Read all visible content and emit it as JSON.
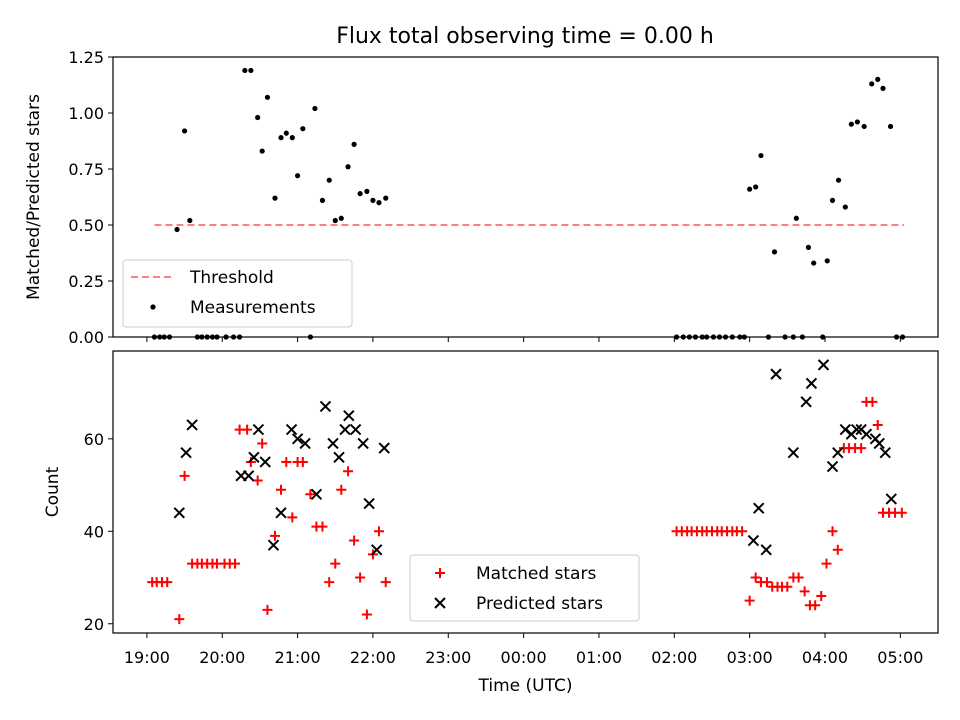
{
  "title": "Flux total observing time = 0.00 h",
  "chart_data": [
    {
      "type": "scatter",
      "ylabel": "Matched/Predicted stars",
      "ylim": [
        0,
        1.25
      ],
      "yticks": [
        0.0,
        0.25,
        0.5,
        0.75,
        1.0,
        1.25
      ],
      "ytick_labels": [
        "0.00",
        "0.25",
        "0.50",
        "0.75",
        "1.00",
        "1.25"
      ],
      "xlim_hours": [
        18.55,
        29.5
      ],
      "legend_placement": "lower-left",
      "threshold": {
        "name": "Threshold",
        "value": 0.5,
        "x_range": [
          19.1,
          29.05
        ],
        "color": "#ff7f7f"
      },
      "series": [
        {
          "name": "Measurements",
          "color": "#000000",
          "x": [
            19.1,
            19.17,
            19.23,
            19.3,
            19.4,
            19.5,
            19.57,
            19.67,
            19.73,
            19.8,
            19.87,
            19.93,
            20.05,
            20.15,
            20.23,
            20.3,
            20.38,
            20.47,
            20.53,
            20.6,
            20.7,
            20.78,
            20.85,
            20.93,
            21.0,
            21.07,
            21.17,
            21.23,
            21.33,
            21.42,
            21.5,
            21.58,
            21.67,
            21.75,
            21.83,
            21.92,
            22.0,
            22.08,
            22.17,
            26.03,
            26.12,
            26.2,
            26.28,
            26.37,
            26.43,
            26.52,
            26.6,
            26.68,
            26.77,
            26.87,
            26.93,
            27.0,
            27.08,
            27.15,
            27.25,
            27.33,
            27.47,
            27.58,
            27.62,
            27.7,
            27.78,
            27.85,
            27.97,
            28.03,
            28.1,
            28.18,
            28.27,
            28.35,
            28.43,
            28.52,
            28.62,
            28.7,
            28.77,
            28.87,
            28.95,
            29.03
          ],
          "y": [
            0.0,
            0.0,
            0.0,
            0.0,
            0.48,
            0.92,
            0.52,
            0.0,
            0.0,
            0.0,
            0.0,
            0.0,
            0.0,
            0.0,
            0.0,
            1.19,
            1.19,
            0.98,
            0.83,
            1.07,
            0.62,
            0.89,
            0.91,
            0.89,
            0.72,
            0.93,
            0.0,
            1.02,
            0.61,
            0.7,
            0.52,
            0.53,
            0.76,
            0.86,
            0.64,
            0.65,
            0.61,
            0.6,
            0.62,
            0.0,
            0.0,
            0.0,
            0.0,
            0.0,
            0.0,
            0.0,
            0.0,
            0.0,
            0.0,
            0.0,
            0.0,
            0.66,
            0.67,
            0.81,
            0.0,
            0.38,
            0.0,
            0.0,
            0.53,
            0.0,
            0.4,
            0.33,
            0.0,
            0.34,
            0.61,
            0.7,
            0.58,
            0.95,
            0.96,
            0.94,
            1.13,
            1.15,
            1.11,
            0.94,
            0.0,
            0.0
          ]
        }
      ]
    },
    {
      "type": "scatter",
      "xlabel": "Time (UTC)",
      "ylabel": "Count",
      "ylim": [
        18,
        79
      ],
      "yticks": [
        20,
        40,
        60
      ],
      "ytick_labels": [
        "20",
        "40",
        "60"
      ],
      "xlim_hours": [
        18.55,
        29.5
      ],
      "xticks_hours": [
        19,
        20,
        21,
        22,
        23,
        24,
        25,
        26,
        27,
        28,
        29
      ],
      "xtick_labels": [
        "19:00",
        "20:00",
        "21:00",
        "22:00",
        "23:00",
        "00:00",
        "01:00",
        "02:00",
        "03:00",
        "04:00",
        "05:00"
      ],
      "legend_placement": "lower-center",
      "series": [
        {
          "name": "Matched stars",
          "color": "#ff0000",
          "marker": "plus",
          "x": [
            19.07,
            19.13,
            19.2,
            19.27,
            19.43,
            19.5,
            19.6,
            19.67,
            19.73,
            19.8,
            19.87,
            19.93,
            20.03,
            20.1,
            20.17,
            20.23,
            20.33,
            20.38,
            20.47,
            20.53,
            20.6,
            20.7,
            20.78,
            20.85,
            20.93,
            21.0,
            21.07,
            21.17,
            21.25,
            21.33,
            21.42,
            21.5,
            21.58,
            21.67,
            21.75,
            21.83,
            21.92,
            22.0,
            22.08,
            22.17,
            26.03,
            26.1,
            26.17,
            26.23,
            26.3,
            26.37,
            26.43,
            26.5,
            26.57,
            26.63,
            26.7,
            26.77,
            26.83,
            26.9,
            27.0,
            27.08,
            27.15,
            27.23,
            27.3,
            27.37,
            27.43,
            27.5,
            27.58,
            27.65,
            27.73,
            27.8,
            27.87,
            27.95,
            28.02,
            28.1,
            28.17,
            28.25,
            28.32,
            28.4,
            28.48,
            28.55,
            28.63,
            28.7,
            28.77,
            28.85,
            28.93,
            29.02
          ],
          "y": [
            29,
            29,
            29,
            29,
            21,
            52,
            33,
            33,
            33,
            33,
            33,
            33,
            33,
            33,
            33,
            62,
            62,
            55,
            51,
            59,
            23,
            39,
            49,
            55,
            43,
            55,
            55,
            48,
            41,
            41,
            29,
            33,
            49,
            53,
            38,
            30,
            22,
            35,
            40,
            29,
            40,
            40,
            40,
            40,
            40,
            40,
            40,
            40,
            40,
            40,
            40,
            40,
            40,
            40,
            25,
            30,
            29,
            29,
            28,
            28,
            28,
            28,
            30,
            30,
            27,
            24,
            24,
            26,
            33,
            40,
            36,
            58,
            58,
            58,
            58,
            68,
            68,
            63,
            44,
            44,
            44,
            44
          ]
        },
        {
          "name": "Predicted stars",
          "color": "#000000",
          "marker": "x",
          "x": [
            19.43,
            19.52,
            19.6,
            20.25,
            20.35,
            20.42,
            20.48,
            20.57,
            20.68,
            20.78,
            20.92,
            21.0,
            21.1,
            21.25,
            21.37,
            21.47,
            21.55,
            21.63,
            21.68,
            21.77,
            21.87,
            21.95,
            22.05,
            22.15,
            27.05,
            27.12,
            27.22,
            27.35,
            27.58,
            27.75,
            27.82,
            27.98,
            28.1,
            28.17,
            28.27,
            28.35,
            28.42,
            28.48,
            28.55,
            28.67,
            28.72,
            28.8,
            28.88
          ],
          "y": [
            44,
            57,
            63,
            52,
            52,
            56,
            62,
            55,
            37,
            44,
            62,
            60,
            59,
            48,
            67,
            59,
            56,
            62,
            65,
            62,
            59,
            46,
            36,
            58,
            38,
            45,
            36,
            74,
            57,
            68,
            72,
            76,
            54,
            57,
            62,
            61,
            62,
            62,
            61,
            60,
            59,
            57,
            47
          ]
        }
      ]
    }
  ]
}
